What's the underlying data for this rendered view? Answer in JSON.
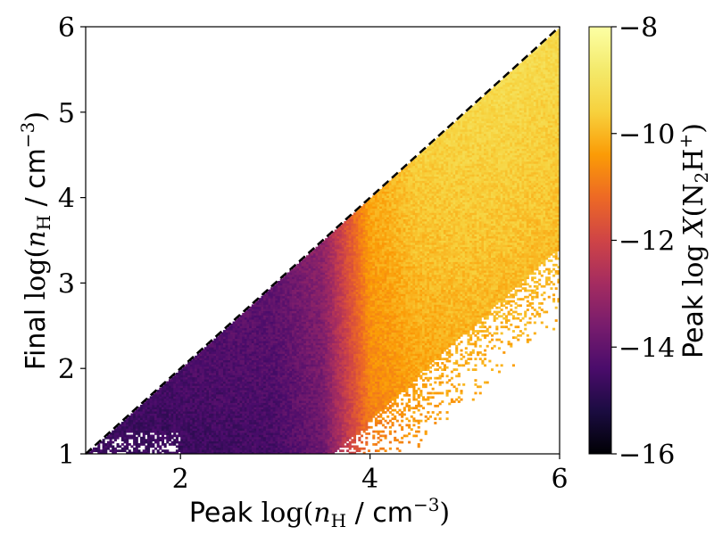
{
  "chart_data": {
    "type": "heatmap",
    "xlabel_word": "Peak",
    "ylabel_word": "Final",
    "axis_quantity": "n",
    "axis_subscript": "H",
    "axis_unit": "cm",
    "axis_unit_exp": "−3",
    "colorbar_word": "Peak",
    "colorbar_var": "X",
    "colorbar_species": "N",
    "colorbar_sub": "2",
    "colorbar_species2": "H",
    "colorbar_sup": "+",
    "log_word": "log",
    "xlim": [
      1,
      6
    ],
    "ylim": [
      1,
      6
    ],
    "xticks": [
      2,
      4,
      6
    ],
    "yticks": [
      1,
      2,
      3,
      4,
      5,
      6
    ],
    "colorbar_range": [
      -16,
      -8
    ],
    "colorbar_ticks": [
      -16,
      -14,
      -12,
      -10,
      -8
    ],
    "colormap": "inferno",
    "reference_line": {
      "style": "dashed",
      "from": [
        1,
        1
      ],
      "to": [
        6,
        6
      ]
    },
    "field_description_points": [
      {
        "peak": 1.5,
        "final": 1.2,
        "value": -14.6
      },
      {
        "peak": 2.0,
        "final": 1.5,
        "value": -14.4
      },
      {
        "peak": 2.5,
        "final": 2.0,
        "value": -14.2
      },
      {
        "peak": 3.0,
        "final": 2.5,
        "value": -14.0
      },
      {
        "peak": 3.5,
        "final": 3.0,
        "value": -13.2
      },
      {
        "peak": 4.0,
        "final": 3.5,
        "value": -10.2
      },
      {
        "peak": 4.5,
        "final": 4.0,
        "value": -9.6
      },
      {
        "peak": 5.0,
        "final": 4.5,
        "value": -9.4
      },
      {
        "peak": 5.5,
        "final": 5.0,
        "value": -9.3
      },
      {
        "peak": 6.0,
        "final": 5.5,
        "value": -9.3
      }
    ]
  },
  "colors": {
    "frame": "#000000",
    "background": "#ffffff"
  }
}
